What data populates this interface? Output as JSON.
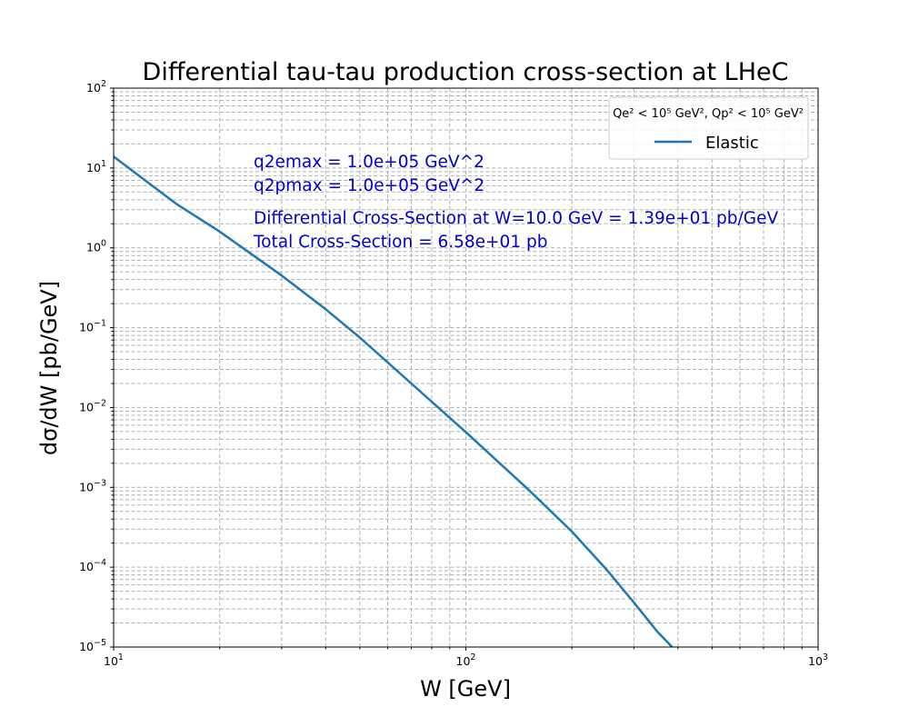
{
  "chart_data": {
    "type": "line",
    "title": "Differential tau-tau production cross-section at LHeC",
    "xlabel": "W [GeV]",
    "ylabel": "dσ/dW [pb/GeV]",
    "xscale": "log",
    "yscale": "log",
    "xlim": [
      10,
      1000
    ],
    "ylim": [
      1e-05,
      100
    ],
    "grid": "both, dashed",
    "x_ticks": [
      {
        "value": 10,
        "base": "10",
        "exp": "1"
      },
      {
        "value": 100,
        "base": "10",
        "exp": "2"
      },
      {
        "value": 1000,
        "base": "10",
        "exp": "3"
      }
    ],
    "y_ticks": [
      {
        "value": 1e-05,
        "base": "10",
        "exp": "−5"
      },
      {
        "value": 0.0001,
        "base": "10",
        "exp": "−4"
      },
      {
        "value": 0.001,
        "base": "10",
        "exp": "−3"
      },
      {
        "value": 0.01,
        "base": "10",
        "exp": "−2"
      },
      {
        "value": 0.1,
        "base": "10",
        "exp": "−1"
      },
      {
        "value": 1,
        "base": "10",
        "exp": "0"
      },
      {
        "value": 10,
        "base": "10",
        "exp": "1"
      },
      {
        "value": 100,
        "base": "10",
        "exp": "2"
      }
    ],
    "legend": {
      "position": "top-right",
      "title": "Qe² < 10⁵ GeV², Qp² < 10⁵ GeV²",
      "entries": [
        "Elastic"
      ]
    },
    "annotations": [
      "q2emax = 1.0e+05 GeV^2",
      "q2pmax = 1.0e+05 GeV^2",
      "Differential Cross-Section at W=10.0 GeV = 1.39e+01 pb/GeV",
      "Total Cross-Section = 6.58e+01 pb"
    ],
    "series": [
      {
        "name": "Elastic",
        "color": "#1f77b4",
        "x": [
          10,
          15,
          20,
          30,
          40,
          50,
          70,
          100,
          150,
          200,
          250,
          300,
          350,
          385
        ],
        "y": [
          13.9,
          3.6,
          1.6,
          0.45,
          0.17,
          0.075,
          0.02,
          0.0049,
          0.00095,
          0.00028,
          9.5e-05,
          3.6e-05,
          1.55e-05,
          1e-05
        ]
      }
    ]
  }
}
